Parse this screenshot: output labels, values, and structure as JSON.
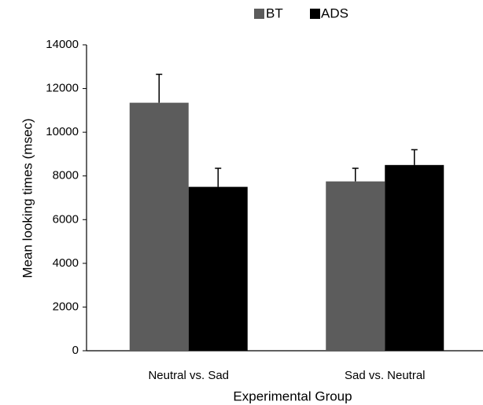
{
  "chart_data": {
    "type": "bar",
    "categories": [
      "Neutral vs. Sad",
      "Sad vs. Neutral"
    ],
    "series": [
      {
        "name": "BT",
        "color": "#5c5c5c",
        "values": [
          11350,
          7750
        ],
        "errors": [
          1300,
          600
        ]
      },
      {
        "name": "ADS",
        "color": "#000000",
        "values": [
          7500,
          8500
        ],
        "errors": [
          850,
          700
        ]
      }
    ],
    "xlabel": "Experimental Group",
    "ylabel": "Mean looking times (msec)",
    "ylim": [
      0,
      14000
    ],
    "yticks": [
      0,
      2000,
      4000,
      6000,
      8000,
      10000,
      12000,
      14000
    ],
    "grid": false,
    "legend": "top"
  }
}
